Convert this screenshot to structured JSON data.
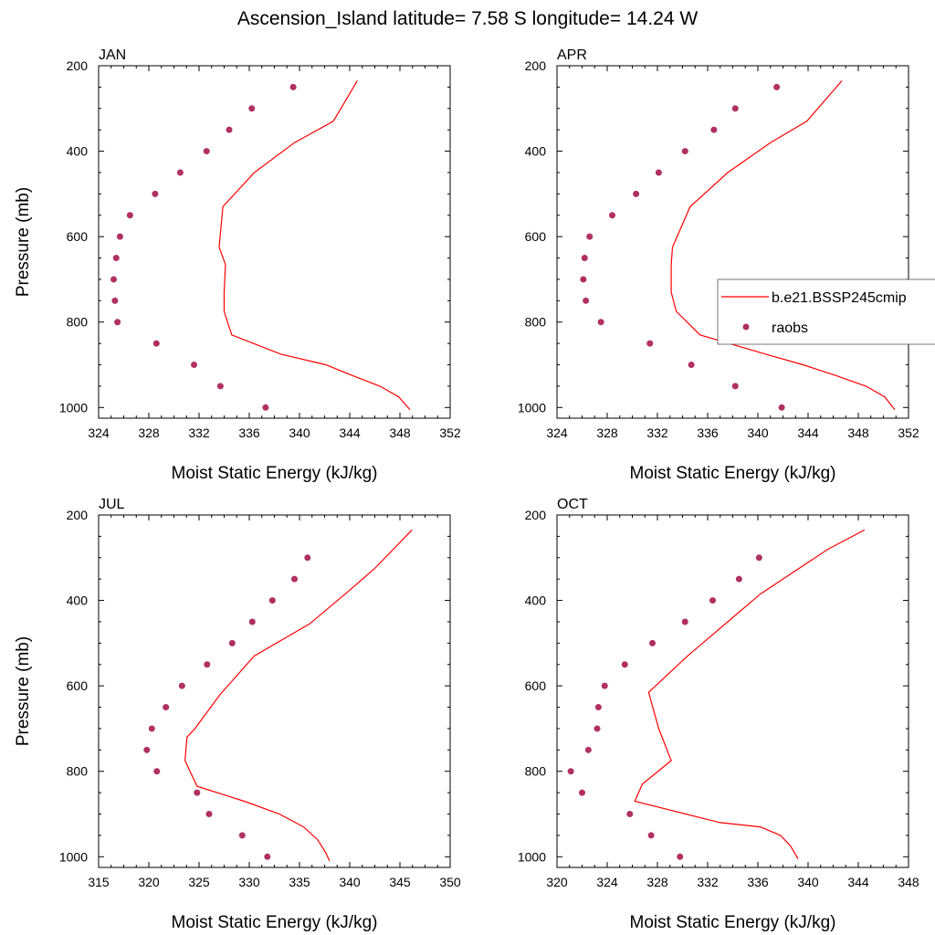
{
  "title": "Ascension_Island  latitude= 7.58 S longitude= 14.24 W",
  "legend": {
    "placement": "right of APR panel",
    "model_label": "b.e21.BSSP245cmip",
    "obs_label": "raobs"
  },
  "colors": {
    "model_line": "#ff0000",
    "obs_marker": "#b03060"
  },
  "chart_data": [
    {
      "type": "line",
      "title": "JAN",
      "xlabel": "Moist Static Energy (kJ/kg)",
      "ylabel": "Pressure (mb)",
      "xlim": [
        324,
        352
      ],
      "ylim": [
        200,
        1025
      ],
      "y_inverted": true,
      "xticks": [
        "324",
        "328",
        "332",
        "336",
        "340",
        "344",
        "348",
        "352"
      ],
      "yticks": [
        "200",
        "400",
        "600",
        "800",
        "1000"
      ],
      "model": {
        "x": [
          348.8,
          347.9,
          346.4,
          344.2,
          342.1,
          338.5,
          334.6,
          334.0,
          334.0,
          334.1,
          333.6,
          333.9,
          336.4,
          339.6,
          342.7,
          344.6
        ],
        "y": [
          1005,
          975,
          950,
          925,
          900,
          875,
          830,
          775,
          730,
          665,
          625,
          530,
          450,
          380,
          330,
          235
        ]
      },
      "obs": {
        "x": [
          337.3,
          333.7,
          331.6,
          328.6,
          325.5,
          325.3,
          325.2,
          325.4,
          325.7,
          326.5,
          328.5,
          330.5,
          332.6,
          334.4,
          336.2,
          339.5
        ],
        "y": [
          1000,
          950,
          900,
          850,
          800,
          750,
          700,
          650,
          600,
          550,
          500,
          450,
          400,
          350,
          300,
          250
        ]
      }
    },
    {
      "type": "line",
      "title": "APR",
      "xlabel": "Moist Static Energy (kJ/kg)",
      "ylabel": "",
      "xlim": [
        324,
        352
      ],
      "ylim": [
        200,
        1025
      ],
      "y_inverted": true,
      "xticks": [
        "324",
        "328",
        "332",
        "336",
        "340",
        "344",
        "348",
        "352"
      ],
      "yticks": [
        "200",
        "400",
        "600",
        "800",
        "1000"
      ],
      "model": {
        "x": [
          350.9,
          350.1,
          348.6,
          346.2,
          343.6,
          340.6,
          335.4,
          333.5,
          333.1,
          333.1,
          333.2,
          334.6,
          337.6,
          341.0,
          343.9,
          346.7
        ],
        "y": [
          1005,
          975,
          950,
          925,
          900,
          875,
          830,
          775,
          730,
          665,
          625,
          530,
          450,
          380,
          330,
          235
        ]
      },
      "obs": {
        "x": [
          341.9,
          338.2,
          334.7,
          331.4,
          327.5,
          326.3,
          326.1,
          326.2,
          326.6,
          328.4,
          330.3,
          332.1,
          334.2,
          336.5,
          338.2,
          341.5
        ],
        "y": [
          1000,
          950,
          900,
          850,
          800,
          750,
          700,
          650,
          600,
          550,
          500,
          450,
          400,
          350,
          300,
          250
        ]
      }
    },
    {
      "type": "line",
      "title": "JUL",
      "xlabel": "Moist Static Energy (kJ/kg)",
      "ylabel": "Pressure (mb)",
      "xlim": [
        315,
        350
      ],
      "ylim": [
        200,
        1025
      ],
      "y_inverted": true,
      "xticks": [
        "315",
        "320",
        "325",
        "330",
        "335",
        "340",
        "345",
        "350"
      ],
      "yticks": [
        "200",
        "400",
        "600",
        "800",
        "1000"
      ],
      "model": {
        "x": [
          338.0,
          337.6,
          336.8,
          335.4,
          333.0,
          329.5,
          324.8,
          323.6,
          323.8,
          324.6,
          327.1,
          330.5,
          336.0,
          339.8,
          342.5,
          346.2
        ],
        "y": [
          1010,
          990,
          960,
          930,
          900,
          870,
          835,
          775,
          720,
          700,
          620,
          530,
          455,
          380,
          325,
          235
        ]
      },
      "obs": {
        "x": [
          331.8,
          329.3,
          326.0,
          324.8,
          320.8,
          319.8,
          320.3,
          321.7,
          323.3,
          325.8,
          328.3,
          330.3,
          332.3,
          334.5,
          335.8
        ],
        "y": [
          1000,
          950,
          900,
          850,
          800,
          750,
          700,
          650,
          600,
          550,
          500,
          450,
          400,
          350,
          300
        ]
      }
    },
    {
      "type": "line",
      "title": "OCT",
      "xlabel": "Moist Static Energy (kJ/kg)",
      "ylabel": "",
      "xlim": [
        320,
        348
      ],
      "ylim": [
        200,
        1025
      ],
      "y_inverted": true,
      "xticks": [
        "320",
        "324",
        "328",
        "332",
        "336",
        "340",
        "344",
        "348"
      ],
      "yticks": [
        "200",
        "400",
        "600",
        "800",
        "1000"
      ],
      "model": {
        "x": [
          339.2,
          338.6,
          337.8,
          336.2,
          333.0,
          326.2,
          326.8,
          329.1,
          328.1,
          327.3,
          330.4,
          333.6,
          336.2,
          341.6,
          344.5
        ],
        "y": [
          1005,
          975,
          950,
          930,
          920,
          870,
          830,
          775,
          700,
          615,
          530,
          450,
          385,
          280,
          235
        ]
      },
      "obs": {
        "x": [
          329.8,
          327.5,
          325.8,
          322.0,
          321.1,
          322.5,
          323.2,
          323.3,
          323.8,
          325.4,
          327.6,
          330.2,
          332.4,
          334.5,
          336.1
        ],
        "y": [
          1000,
          950,
          900,
          850,
          800,
          750,
          700,
          650,
          600,
          550,
          500,
          450,
          400,
          350,
          300
        ]
      }
    }
  ]
}
